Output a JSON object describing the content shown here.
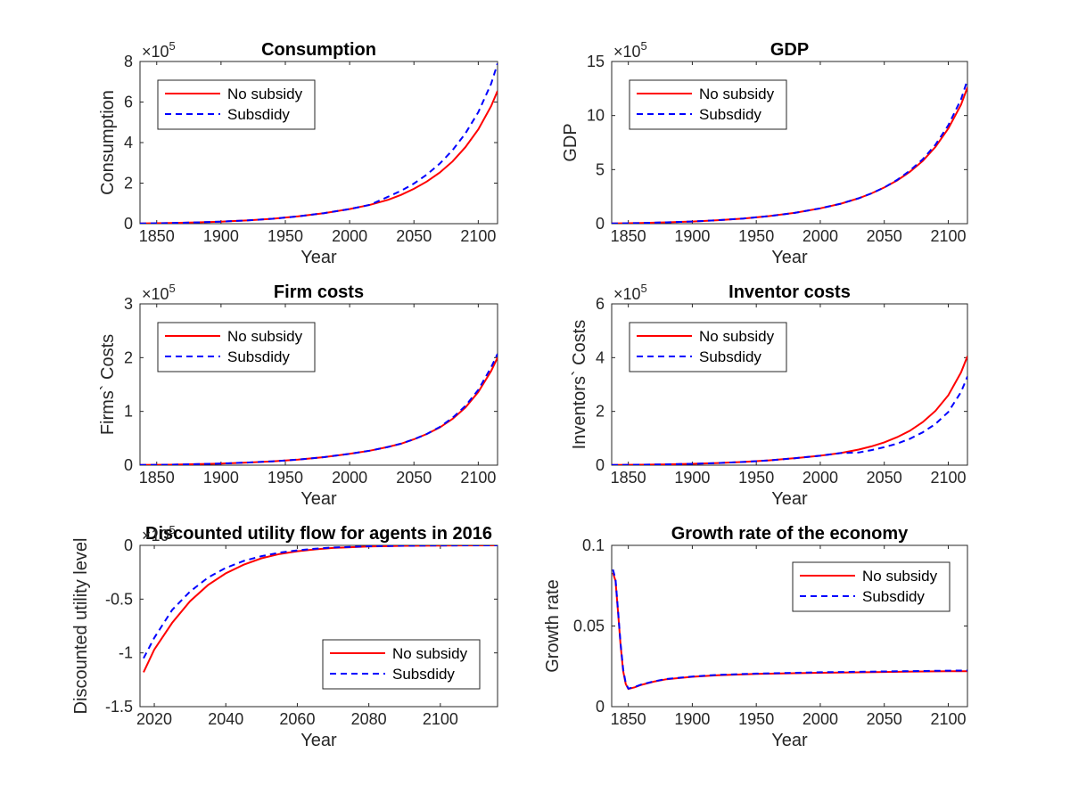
{
  "figure": {
    "series_styles": [
      {
        "name": "No subsidy",
        "color": "#ff0000",
        "dash": "solid"
      },
      {
        "name": "Subsdidy",
        "color": "#0000ff",
        "dash": "dashed"
      }
    ]
  },
  "chart_data": [
    {
      "type": "line",
      "title": "Consumption",
      "xlabel": "Year",
      "ylabel": "Consumption",
      "multiplier": "×10",
      "multiplier_exp": "5",
      "xlim": [
        1837,
        2115
      ],
      "ylim": [
        0,
        8
      ],
      "xticks": [
        1850,
        1900,
        1950,
        2000,
        2050,
        2100
      ],
      "yticks": [
        0,
        2,
        4,
        6,
        8
      ],
      "legend": "top-left",
      "grid": false,
      "x": [
        1837,
        1860,
        1880,
        1900,
        1920,
        1940,
        1960,
        1980,
        2000,
        2016,
        2030,
        2040,
        2050,
        2060,
        2070,
        2080,
        2090,
        2100,
        2110,
        2115
      ],
      "series": [
        {
          "name": "No subsidy",
          "values": [
            0.01,
            0.03,
            0.06,
            0.1,
            0.16,
            0.24,
            0.36,
            0.52,
            0.72,
            0.93,
            1.18,
            1.42,
            1.72,
            2.08,
            2.52,
            3.07,
            3.77,
            4.65,
            5.8,
            6.55
          ]
        },
        {
          "name": "Subsdidy",
          "values": [
            0.01,
            0.03,
            0.06,
            0.1,
            0.16,
            0.24,
            0.36,
            0.52,
            0.72,
            0.93,
            1.33,
            1.62,
            1.98,
            2.42,
            2.96,
            3.62,
            4.45,
            5.5,
            6.9,
            7.9
          ]
        }
      ]
    },
    {
      "type": "line",
      "title": "GDP",
      "xlabel": "Year",
      "ylabel": "GDP",
      "multiplier": "×10",
      "multiplier_exp": "5",
      "xlim": [
        1837,
        2115
      ],
      "ylim": [
        0,
        15
      ],
      "xticks": [
        1850,
        1900,
        1950,
        2000,
        2050,
        2100
      ],
      "yticks": [
        0,
        5,
        10,
        15
      ],
      "legend": "top-left",
      "grid": false,
      "x": [
        1837,
        1860,
        1880,
        1900,
        1920,
        1940,
        1960,
        1980,
        2000,
        2016,
        2030,
        2040,
        2050,
        2060,
        2070,
        2080,
        2090,
        2100,
        2110,
        2115
      ],
      "series": [
        {
          "name": "No subsidy",
          "values": [
            0.02,
            0.06,
            0.12,
            0.2,
            0.32,
            0.48,
            0.7,
            1.0,
            1.42,
            1.85,
            2.35,
            2.8,
            3.35,
            4.0,
            4.8,
            5.8,
            7.1,
            8.8,
            11.0,
            12.6
          ]
        },
        {
          "name": "Subsdidy",
          "values": [
            0.02,
            0.06,
            0.12,
            0.2,
            0.32,
            0.48,
            0.7,
            1.0,
            1.42,
            1.85,
            2.35,
            2.8,
            3.35,
            4.05,
            4.9,
            5.95,
            7.3,
            9.1,
            11.5,
            13.3
          ]
        }
      ]
    },
    {
      "type": "line",
      "title": "Firm costs",
      "xlabel": "Year",
      "ylabel": "Firms` Costs",
      "multiplier": "×10",
      "multiplier_exp": "5",
      "xlim": [
        1837,
        2115
      ],
      "ylim": [
        0,
        3
      ],
      "xticks": [
        1850,
        1900,
        1950,
        2000,
        2050,
        2100
      ],
      "yticks": [
        0,
        1,
        2,
        3
      ],
      "legend": "top-left",
      "grid": false,
      "x": [
        1837,
        1860,
        1880,
        1900,
        1920,
        1940,
        1960,
        1980,
        2000,
        2016,
        2030,
        2040,
        2050,
        2060,
        2070,
        2080,
        2090,
        2100,
        2110,
        2115
      ],
      "series": [
        {
          "name": "No subsidy",
          "values": [
            0.003,
            0.009,
            0.018,
            0.03,
            0.048,
            0.072,
            0.105,
            0.15,
            0.21,
            0.27,
            0.34,
            0.4,
            0.48,
            0.58,
            0.7,
            0.86,
            1.07,
            1.36,
            1.75,
            2.0
          ]
        },
        {
          "name": "Subsdidy",
          "values": [
            0.003,
            0.009,
            0.018,
            0.03,
            0.048,
            0.072,
            0.105,
            0.15,
            0.21,
            0.27,
            0.34,
            0.4,
            0.48,
            0.58,
            0.71,
            0.88,
            1.1,
            1.4,
            1.82,
            2.07
          ]
        }
      ]
    },
    {
      "type": "line",
      "title": "Inventor costs",
      "xlabel": "Year",
      "ylabel": "Inventors` Costs",
      "multiplier": "×10",
      "multiplier_exp": "5",
      "xlim": [
        1837,
        2115
      ],
      "ylim": [
        0,
        6
      ],
      "xticks": [
        1850,
        1900,
        1950,
        2000,
        2050,
        2100
      ],
      "yticks": [
        0,
        2,
        4,
        6
      ],
      "legend": "top-left",
      "grid": false,
      "x": [
        1837,
        1860,
        1880,
        1900,
        1920,
        1940,
        1960,
        1980,
        2000,
        2016,
        2030,
        2040,
        2050,
        2060,
        2070,
        2080,
        2090,
        2100,
        2110,
        2115
      ],
      "series": [
        {
          "name": "No subsidy",
          "values": [
            0.005,
            0.015,
            0.03,
            0.05,
            0.08,
            0.12,
            0.18,
            0.26,
            0.35,
            0.45,
            0.58,
            0.7,
            0.85,
            1.04,
            1.28,
            1.6,
            2.02,
            2.6,
            3.45,
            4.05
          ]
        },
        {
          "name": "Subsdidy",
          "values": [
            0.005,
            0.015,
            0.03,
            0.05,
            0.08,
            0.12,
            0.18,
            0.26,
            0.35,
            0.45,
            0.47,
            0.56,
            0.67,
            0.8,
            0.98,
            1.22,
            1.53,
            1.98,
            2.72,
            3.3
          ]
        }
      ]
    },
    {
      "type": "line",
      "title": "Discounted utility flow for agents in 2016",
      "xlabel": "Year",
      "ylabel": "Discounted utility level",
      "multiplier": "×10",
      "multiplier_exp": "5",
      "xlim": [
        2016,
        2116
      ],
      "ylim": [
        -1.5,
        0
      ],
      "xticks": [
        2020,
        2040,
        2060,
        2080,
        2100
      ],
      "yticks": [
        -1.5,
        -1,
        -0.5,
        0
      ],
      "ytick_labels": [
        "-1.5",
        "-1",
        "-0.5",
        "0"
      ],
      "legend": "bottom-right",
      "grid": false,
      "x": [
        2017,
        2020,
        2025,
        2030,
        2035,
        2040,
        2045,
        2050,
        2055,
        2060,
        2065,
        2070,
        2080,
        2090,
        2100,
        2116
      ],
      "series": [
        {
          "name": "No subsidy",
          "values": [
            -1.18,
            -0.97,
            -0.72,
            -0.52,
            -0.37,
            -0.26,
            -0.18,
            -0.12,
            -0.08,
            -0.055,
            -0.037,
            -0.024,
            -0.01,
            -0.004,
            -0.002,
            0
          ]
        },
        {
          "name": "Subsdidy",
          "values": [
            -1.05,
            -0.86,
            -0.6,
            -0.43,
            -0.3,
            -0.21,
            -0.145,
            -0.1,
            -0.068,
            -0.046,
            -0.031,
            -0.02,
            -0.008,
            -0.003,
            -0.001,
            0
          ]
        }
      ]
    },
    {
      "type": "line",
      "title": "Growth rate of the economy",
      "xlabel": "Year",
      "ylabel": "Growth rate",
      "xlim": [
        1837,
        2115
      ],
      "ylim": [
        0,
        0.1
      ],
      "xticks": [
        1850,
        1900,
        1950,
        2000,
        2050,
        2100
      ],
      "yticks": [
        0,
        0.05,
        0.1
      ],
      "ytick_labels": [
        "0",
        "0.05",
        "0.1"
      ],
      "legend": "top-right",
      "grid": false,
      "x": [
        1838,
        1840,
        1842,
        1844,
        1846,
        1848,
        1850,
        1855,
        1860,
        1870,
        1880,
        1900,
        1920,
        1950,
        2000,
        2050,
        2100,
        2115
      ],
      "series": [
        {
          "name": "No subsidy",
          "values": [
            0.083,
            0.078,
            0.058,
            0.038,
            0.022,
            0.014,
            0.011,
            0.012,
            0.0135,
            0.0155,
            0.017,
            0.0185,
            0.0195,
            0.0203,
            0.021,
            0.0215,
            0.022,
            0.022
          ]
        },
        {
          "name": "Subsdidy",
          "values": [
            0.085,
            0.079,
            0.059,
            0.039,
            0.023,
            0.0145,
            0.0112,
            0.0122,
            0.0137,
            0.0157,
            0.0172,
            0.0187,
            0.0197,
            0.0205,
            0.0213,
            0.0218,
            0.0223,
            0.0224
          ]
        }
      ]
    }
  ]
}
